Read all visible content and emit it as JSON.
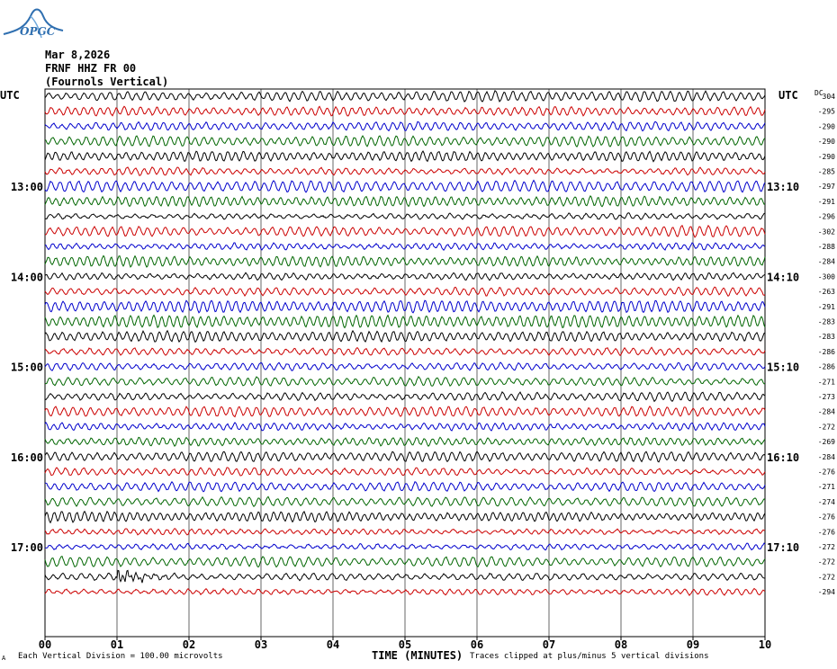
{
  "header": {
    "logo_text": "OPGC",
    "date": "Mar 8,2026",
    "station": "FRNF HHZ FR 00",
    "location": "(Fournols Vertical)"
  },
  "labels": {
    "utc_left": "UTC",
    "utc_right": "UTC",
    "dc": "DC"
  },
  "footer": {
    "division": "Each Vertical Division =  100.00 microvolts",
    "clip": "Traces clipped at plus/minus 5 vertical divisions",
    "small_mark": "A"
  },
  "colors": {
    "trace_cycle": [
      "#000000",
      "#cc0000",
      "#0000cc",
      "#006600"
    ],
    "grid": "#000000",
    "logo": "#2f6fb0"
  },
  "chart_data": {
    "type": "line",
    "title": "",
    "xlabel": "TIME (MINUTES)",
    "ylabel": "",
    "xlim": [
      0,
      10
    ],
    "x_ticks": [
      "00",
      "01",
      "02",
      "03",
      "04",
      "05",
      "06",
      "07",
      "08",
      "09",
      "10"
    ],
    "grid": true,
    "left_hour_labels": [
      {
        "row": 6,
        "label": "13:00"
      },
      {
        "row": 12,
        "label": "14:00"
      },
      {
        "row": 18,
        "label": "15:00"
      },
      {
        "row": 24,
        "label": "16:00"
      },
      {
        "row": 30,
        "label": "17:00"
      }
    ],
    "right_hour_labels": [
      {
        "row": 6,
        "label": "13:10"
      },
      {
        "row": 12,
        "label": "14:10"
      },
      {
        "row": 18,
        "label": "15:10"
      },
      {
        "row": 24,
        "label": "16:10"
      },
      {
        "row": 30,
        "label": "17:10"
      }
    ],
    "dc_offsets": [
      "304",
      "-295",
      "-290",
      "-290",
      "-290",
      "-285",
      "-297",
      "-291",
      "-296",
      "-302",
      "-288",
      "-284",
      "-300",
      "-263",
      "-291",
      "-283",
      "-283",
      "-286",
      "-286",
      "-271",
      "-273",
      "-284",
      "-272",
      "-269",
      "-284",
      "-276",
      "-271",
      "-274",
      "-276",
      "-276",
      "-272",
      "-272",
      "-272",
      "-294"
    ],
    "event": {
      "row": 32,
      "start_minute": 1.0,
      "end_minute": 2.1
    }
  }
}
